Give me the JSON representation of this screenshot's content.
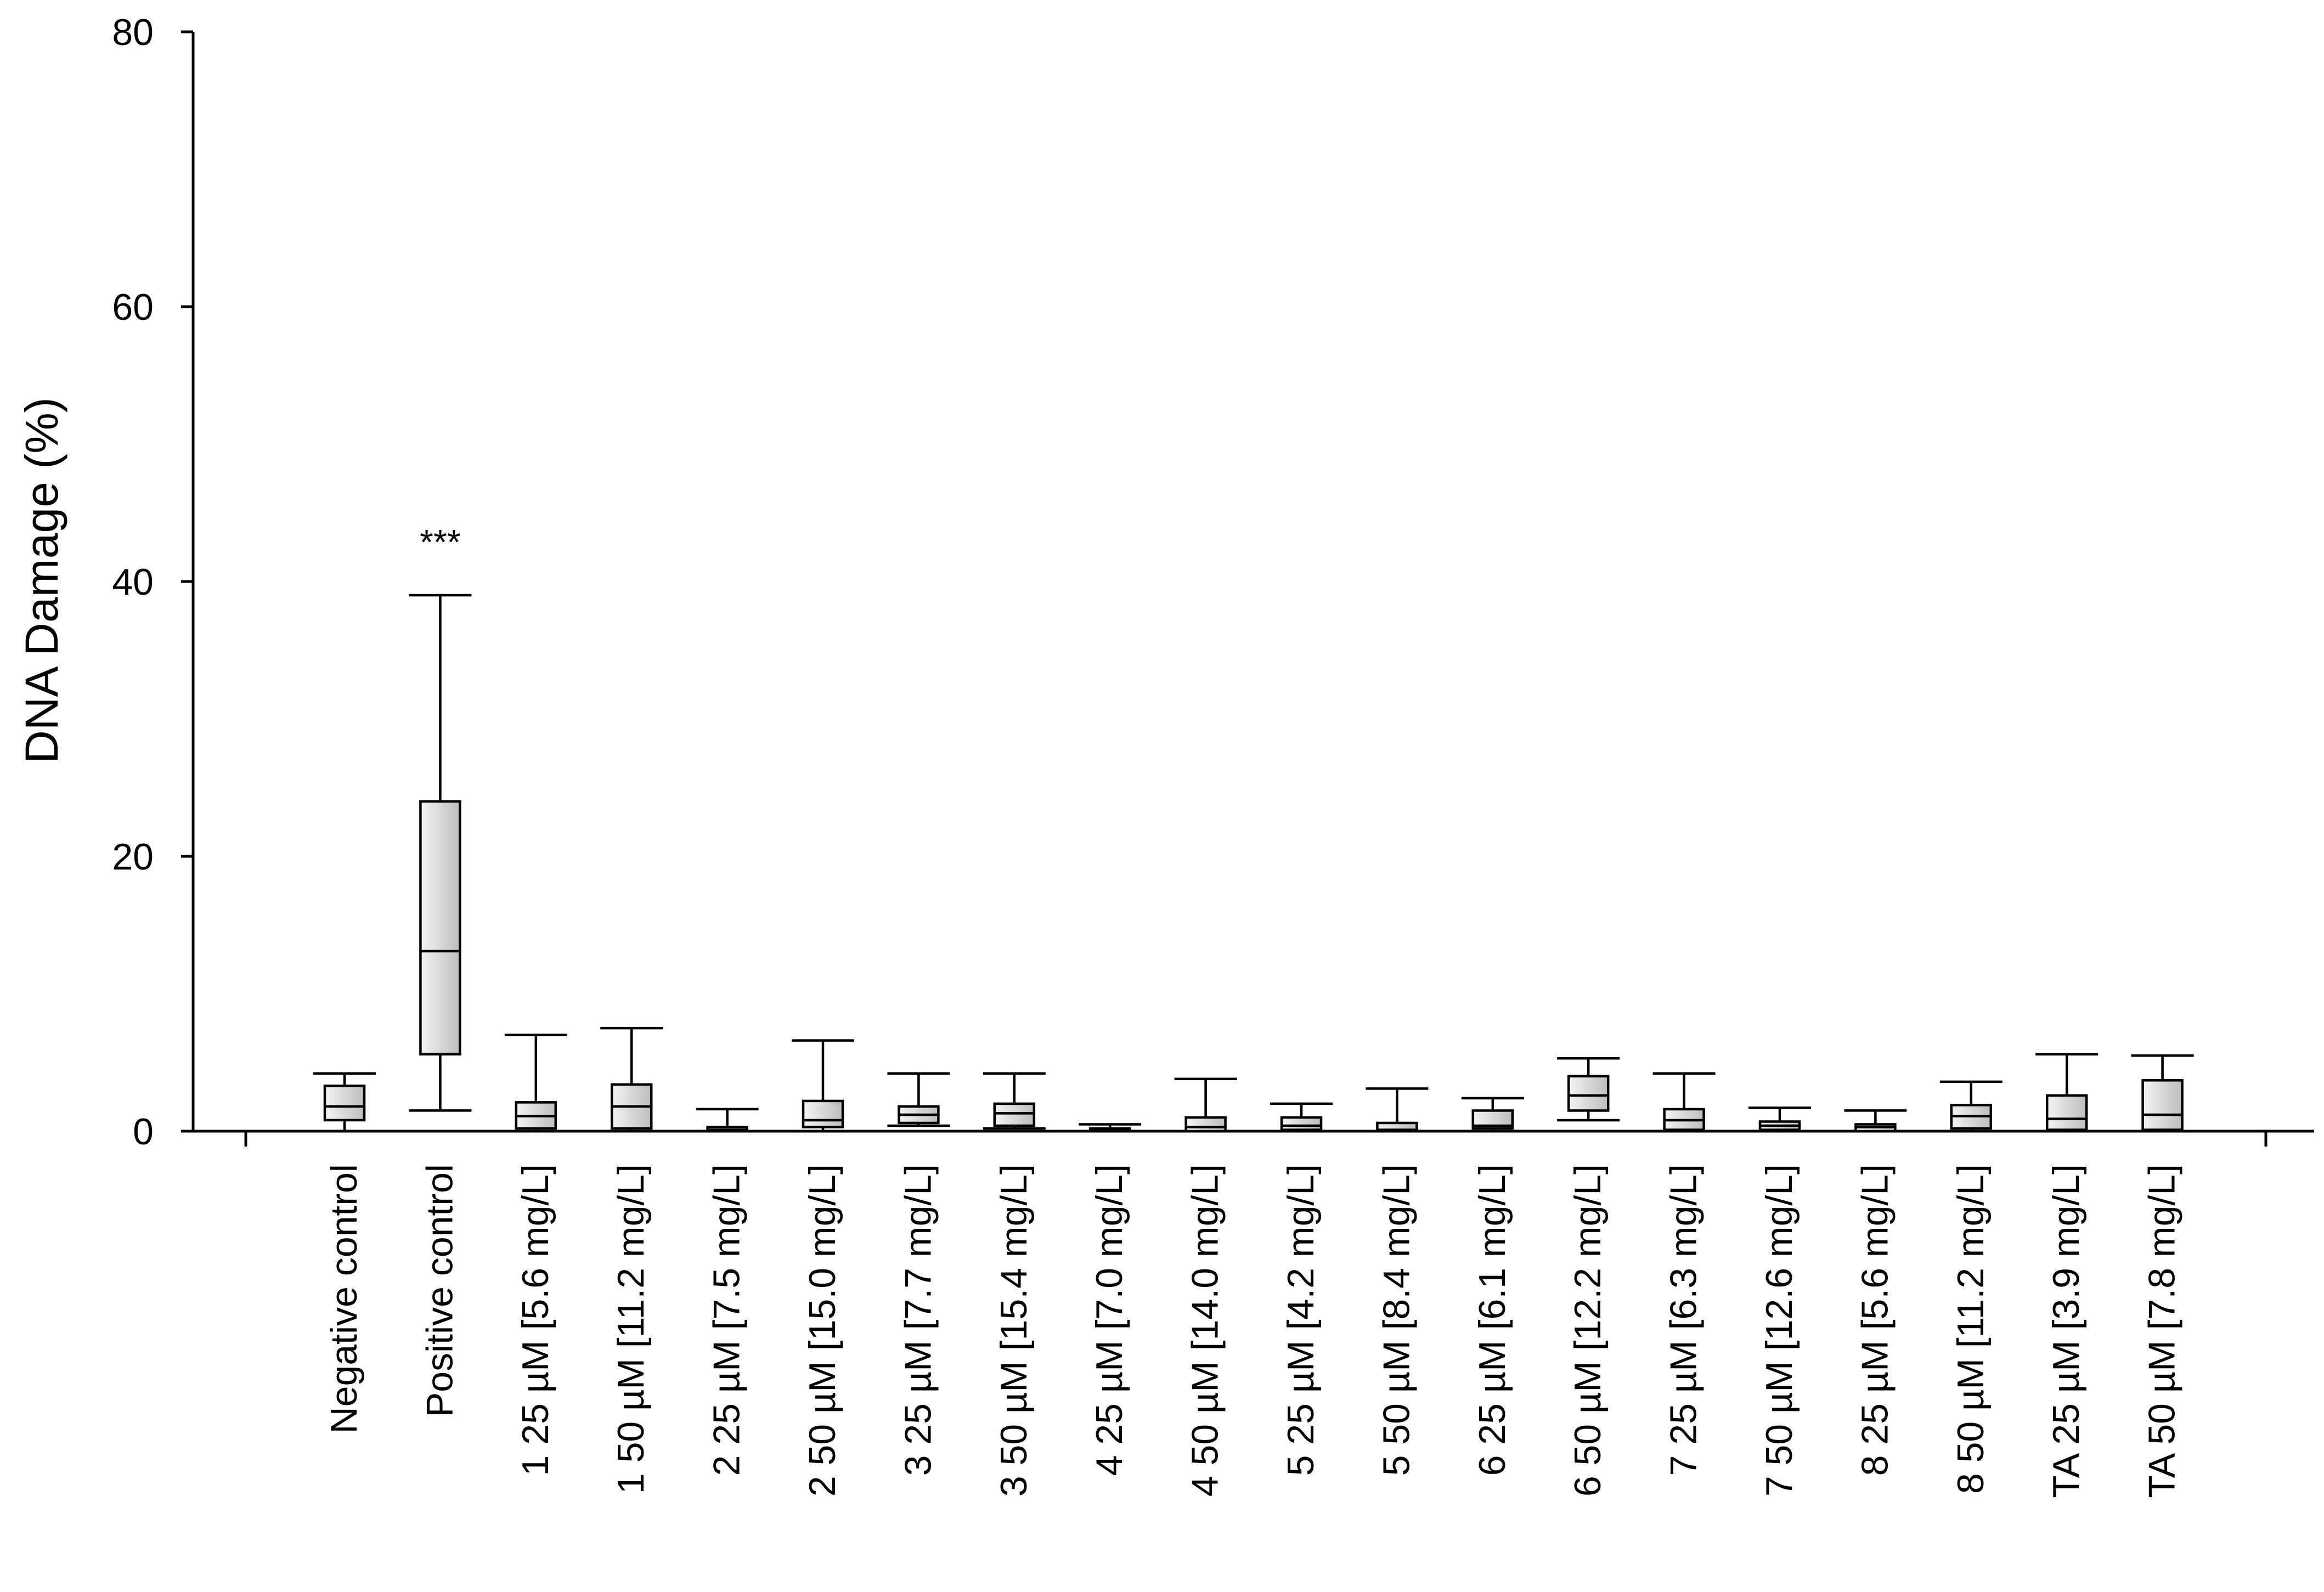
{
  "chart_data": {
    "type": "box",
    "title": "",
    "xlabel": "",
    "ylabel": "DNA Damage (%)",
    "ylim": [
      0,
      80
    ],
    "yticks": [
      0,
      20,
      40,
      60,
      80
    ],
    "categories": [
      "Negative control",
      "Positive control",
      "1  25 µM [5.6 mg/L]",
      "1  50 µM [11.2 mg/L]",
      "2  25 µM [7.5 mg/L]",
      "2  50 µM [15.0 mg/L]",
      "3  25 µM [7.7 mg/L]",
      "3  50 µM [15.4 mg/L]",
      "4  25 µM [7.0 mg/L]",
      "4  50 µM [14.0 mg/L]",
      "5  25 µM [4.2 mg/L]",
      "5  50 µM [8.4 mg/L]",
      "6  25 µM [6.1 mg/L]",
      "6  50 µM [12.2 mg/L]",
      "7  25 µM [6.3 mg/L]",
      "7  50 µM [12.6 mg/L]",
      "8  25 µM [5.6 mg/L]",
      "8  50 µM [11.2 mg/L]",
      "TA  25 µM [3.9 mg/L]",
      "TA  50 µM [7.8 mg/L]"
    ],
    "boxes": [
      {
        "min": 0.0,
        "q1": 0.8,
        "median": 1.8,
        "q3": 3.3,
        "max": 4.2
      },
      {
        "min": 1.5,
        "q1": 5.6,
        "median": 13.1,
        "q3": 24.0,
        "max": 39.0
      },
      {
        "min": 0.0,
        "q1": 0.2,
        "median": 1.1,
        "q3": 2.1,
        "max": 7.0
      },
      {
        "min": 0.0,
        "q1": 0.2,
        "median": 1.8,
        "q3": 3.4,
        "max": 7.5
      },
      {
        "min": 0.0,
        "q1": 0.0,
        "median": 0.1,
        "q3": 0.3,
        "max": 1.6
      },
      {
        "min": 0.0,
        "q1": 0.3,
        "median": 0.8,
        "q3": 2.2,
        "max": 6.6
      },
      {
        "min": 0.4,
        "q1": 0.6,
        "median": 1.2,
        "q3": 1.8,
        "max": 4.2
      },
      {
        "min": 0.2,
        "q1": 0.4,
        "median": 1.3,
        "q3": 2.0,
        "max": 4.2
      },
      {
        "min": 0.0,
        "q1": 0.0,
        "median": 0.1,
        "q3": 0.2,
        "max": 0.5
      },
      {
        "min": 0.0,
        "q1": 0.0,
        "median": 0.3,
        "q3": 1.0,
        "max": 3.8
      },
      {
        "min": 0.0,
        "q1": 0.1,
        "median": 0.4,
        "q3": 1.0,
        "max": 2.0
      },
      {
        "min": 0.0,
        "q1": 0.0,
        "median": 0.1,
        "q3": 0.6,
        "max": 3.1
      },
      {
        "min": 0.0,
        "q1": 0.2,
        "median": 0.4,
        "q3": 1.5,
        "max": 2.4
      },
      {
        "min": 0.8,
        "q1": 1.5,
        "median": 2.6,
        "q3": 4.0,
        "max": 5.3
      },
      {
        "min": 0.0,
        "q1": 0.1,
        "median": 0.8,
        "q3": 1.6,
        "max": 4.2
      },
      {
        "min": 0.0,
        "q1": 0.1,
        "median": 0.4,
        "q3": 0.7,
        "max": 1.7
      },
      {
        "min": 0.0,
        "q1": 0.0,
        "median": 0.3,
        "q3": 0.5,
        "max": 1.5
      },
      {
        "min": 0.0,
        "q1": 0.2,
        "median": 1.1,
        "q3": 1.9,
        "max": 3.6
      },
      {
        "min": 0.0,
        "q1": 0.1,
        "median": 0.9,
        "q3": 2.6,
        "max": 5.6
      },
      {
        "min": 0.0,
        "q1": 0.1,
        "median": 1.2,
        "q3": 3.7,
        "max": 5.5
      }
    ],
    "annotations": [
      {
        "category_index": 1,
        "text": "***"
      }
    ],
    "grid": false,
    "legend": "none"
  }
}
